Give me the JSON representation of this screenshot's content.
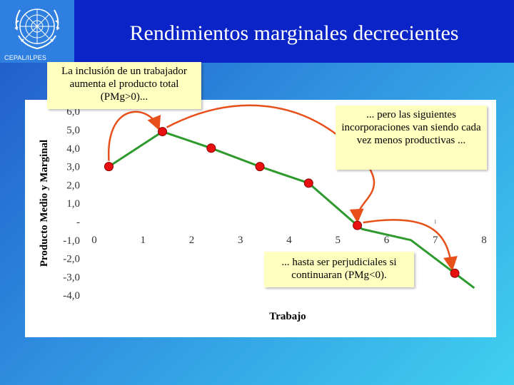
{
  "header": {
    "title": "Rendimientos marginales decrecientes",
    "org": "CEPAL/ILPES"
  },
  "callouts": {
    "first": "La inclusión de un trabajador aumenta el producto total (PMg>0)...",
    "second": "... pero las siguientes incorporaciones van siendo cada vez menos productivas ...",
    "third": "... hasta ser perjudiciales si continuaran (PMg<0)."
  },
  "colors": {
    "header_bar": "#0a24c8",
    "line": "#2e9a2e",
    "marker": "#e81010",
    "arrow": "#e8501a",
    "callout_bg": "#ffffc0"
  },
  "chart_data": {
    "type": "line",
    "xlabel": "Trabajo",
    "ylabel": "Producto Medio y Marginal",
    "xlim": [
      0,
      8
    ],
    "ylim": [
      -4,
      6
    ],
    "x_ticks": [
      "0",
      "1",
      "2",
      "3",
      "4",
      "5",
      "6",
      "7",
      "8"
    ],
    "y_ticks": [
      {
        "value": 6,
        "label": "6,0"
      },
      {
        "value": 5,
        "label": "5,0"
      },
      {
        "value": 4,
        "label": "4,0"
      },
      {
        "value": 3,
        "label": "3,0"
      },
      {
        "value": 2,
        "label": "2,0"
      },
      {
        "value": 1,
        "label": "1,0"
      },
      {
        "value": 0,
        "label": "-"
      },
      {
        "value": -1,
        "label": "-1,0"
      },
      {
        "value": -2,
        "label": "-2,0"
      },
      {
        "value": -3,
        "label": "-3,0"
      },
      {
        "value": -4,
        "label": "-4,0"
      }
    ],
    "series": [
      {
        "x": [
          0.3,
          1.4,
          2.4,
          3.4,
          4.4,
          5.4,
          5.5,
          6.5,
          7.4,
          7.8
        ],
        "values": [
          3.0,
          4.9,
          4.0,
          3.0,
          2.1,
          -0.2,
          -0.4,
          -1.0,
          -2.8,
          -3.6
        ],
        "markers_x": [
          0.3,
          1.4,
          2.4,
          3.4,
          4.4,
          5.4,
          7.4
        ],
        "markers_y": [
          3.0,
          4.9,
          4.0,
          3.0,
          2.1,
          -0.2,
          -2.8
        ]
      }
    ],
    "annotations": [
      {
        "text": "La inclusión de un trabajador aumenta el producto total (PMg>0)...",
        "points_to": [
          1.4,
          4.9
        ]
      },
      {
        "text": "... pero las siguientes incorporaciones van siendo cada vez menos productivas ...",
        "points_to": [
          5.4,
          -0.2
        ]
      },
      {
        "text": "... hasta ser perjudiciales si continuaran (PMg<0).",
        "points_to": [
          7.4,
          -2.8
        ]
      }
    ]
  }
}
